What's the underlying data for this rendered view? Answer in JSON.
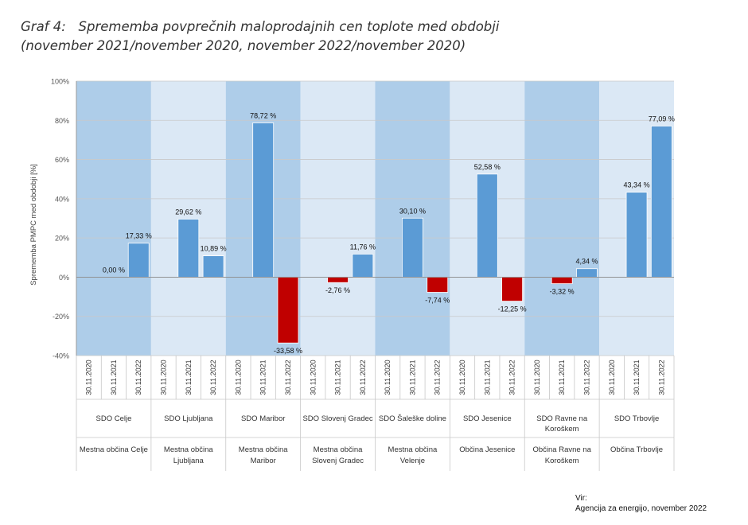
{
  "title": {
    "line1": "Graf 4:   Sprememba povprečnih maloprodajnih cen toplote med obdobji",
    "line2": "(november 2021/november 2020, november 2022/november 2020)"
  },
  "source": {
    "label": "Vir:",
    "text": "Agencija za energijo, november 2022"
  },
  "chart_data": {
    "type": "bar",
    "ylabel": "Sprememba PMPC med obdobji [%]",
    "ylim": [
      -40,
      100
    ],
    "yticks": [
      -40,
      -20,
      0,
      20,
      40,
      60,
      80,
      100
    ],
    "ytick_labels": [
      "-40%",
      "-20%",
      "0%",
      "20%",
      "40%",
      "60%",
      "80%",
      "100%"
    ],
    "periods": [
      "30.11.2020",
      "30.11.2021",
      "30.11.2022"
    ],
    "positive_color": "#5b9bd5",
    "negative_color": "#c00000",
    "band_colors": [
      "#aecde9",
      "#dbe8f5"
    ],
    "groups": [
      {
        "sdo": [
          "SDO Celje"
        ],
        "municipality": [
          "Mestna občina Celje"
        ],
        "values": [
          null,
          0.0,
          17.33
        ],
        "labels": [
          "",
          "0,00 %",
          "17,33 %"
        ]
      },
      {
        "sdo": [
          "SDO Ljubljana"
        ],
        "municipality": [
          "Mestna občina",
          "Ljubljana"
        ],
        "values": [
          null,
          29.62,
          10.89
        ],
        "labels": [
          "",
          "29,62 %",
          "10,89 %"
        ]
      },
      {
        "sdo": [
          "SDO Maribor"
        ],
        "municipality": [
          "Mestna občina",
          "Maribor"
        ],
        "values": [
          null,
          78.72,
          -33.58
        ],
        "labels": [
          "",
          "78,72 %",
          "-33,58 %"
        ]
      },
      {
        "sdo": [
          "SDO Slovenj Gradec"
        ],
        "municipality": [
          "Mestna občina",
          "Slovenj Gradec"
        ],
        "values": [
          null,
          -2.76,
          11.76
        ],
        "labels": [
          "",
          "-2,76 %",
          "11,76 %"
        ]
      },
      {
        "sdo": [
          "SDO Šaleške doline"
        ],
        "municipality": [
          "Mestna občina",
          "Velenje"
        ],
        "values": [
          null,
          30.1,
          -7.74
        ],
        "labels": [
          "",
          "30,10 %",
          "-7,74 %"
        ]
      },
      {
        "sdo": [
          "SDO Jesenice"
        ],
        "municipality": [
          "Občina Jesenice"
        ],
        "values": [
          null,
          52.58,
          -12.25
        ],
        "labels": [
          "",
          "52,58 %",
          "-12,25 %"
        ]
      },
      {
        "sdo": [
          "SDO Ravne na",
          "Koroškem"
        ],
        "municipality": [
          "Občina Ravne na",
          "Koroškem"
        ],
        "values": [
          null,
          -3.32,
          4.34
        ],
        "labels": [
          "",
          "-3,32 %",
          "4,34 %"
        ]
      },
      {
        "sdo": [
          "SDO Trbovlje"
        ],
        "municipality": [
          "Občina Trbovlje"
        ],
        "values": [
          null,
          43.34,
          77.09
        ],
        "labels": [
          "",
          "43,34 %",
          "77,09 %"
        ]
      }
    ]
  }
}
